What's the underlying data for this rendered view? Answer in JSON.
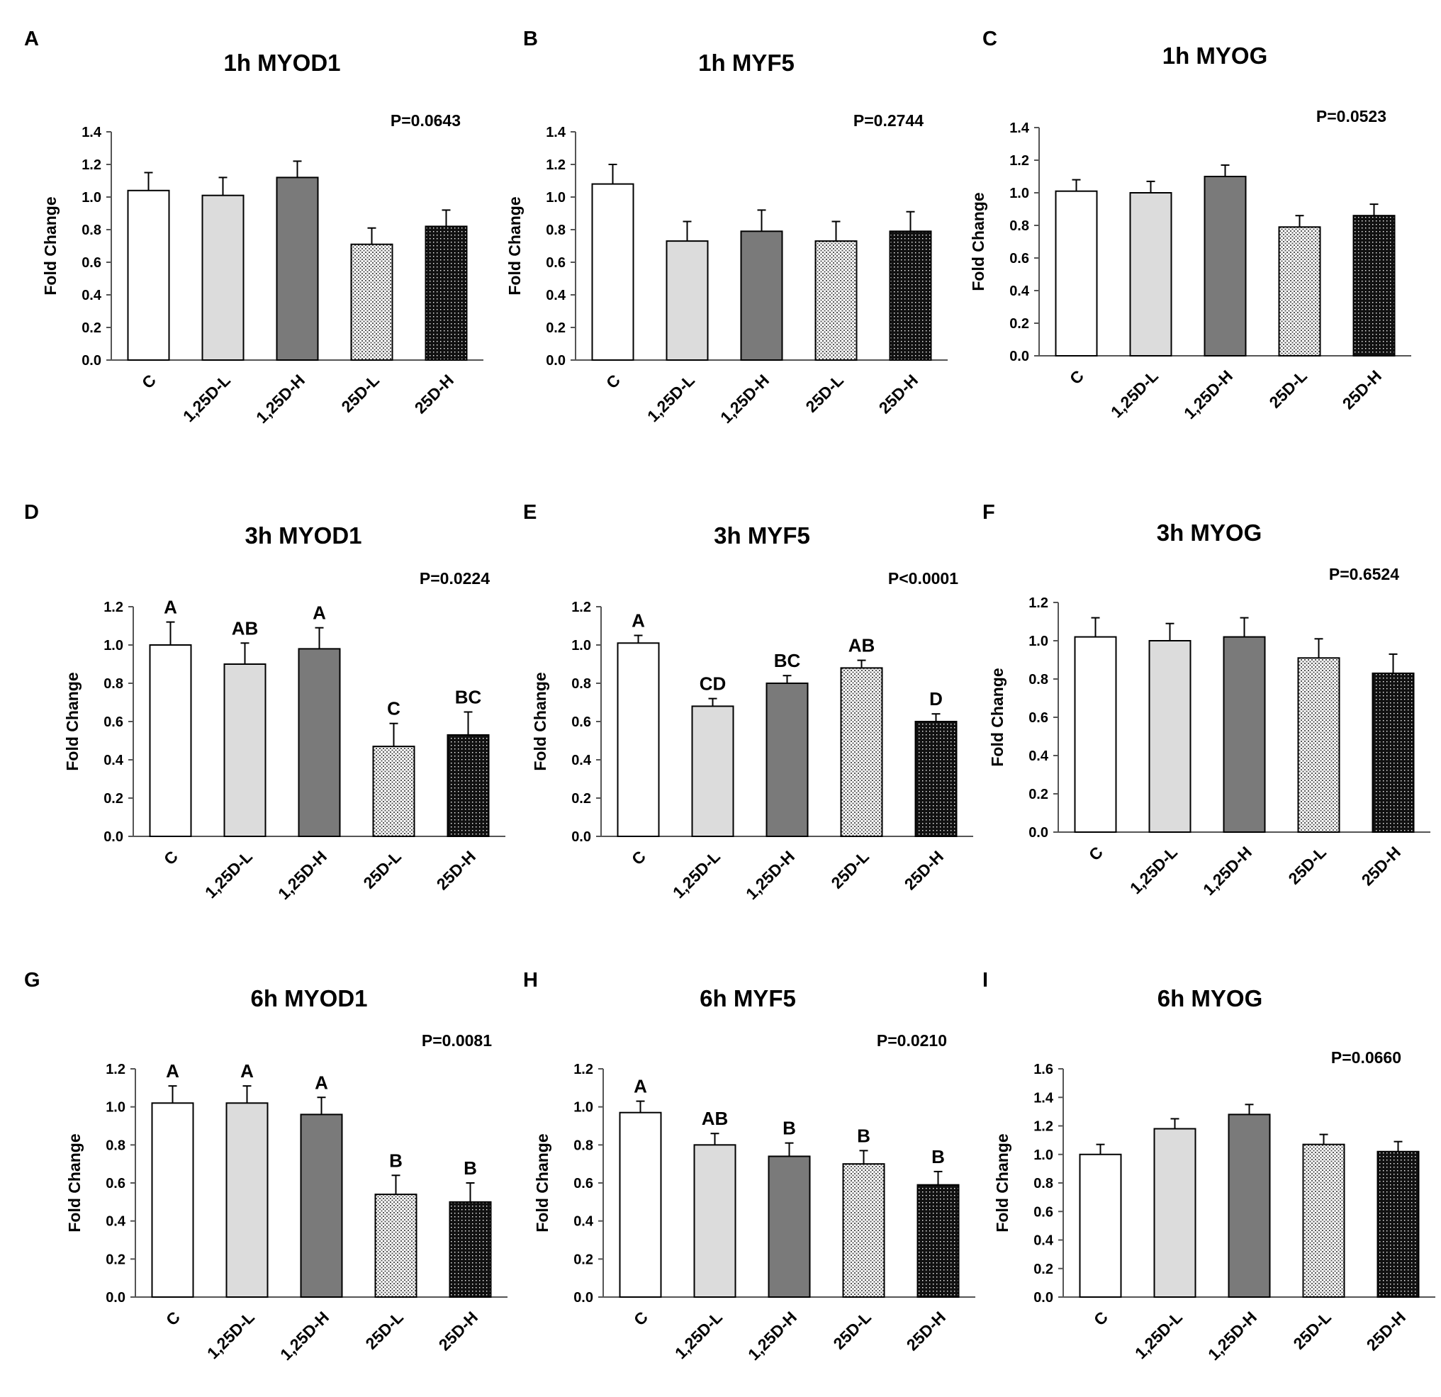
{
  "figure": {
    "categories": [
      "C",
      "1,25D-L",
      "1,25D-H",
      "25D-L",
      "25D-H"
    ],
    "ylabel": "Fold Change",
    "fills": [
      "#ffffff",
      "#dcdcdc",
      "#7a7a7a",
      "pattern-light",
      "pattern-dark"
    ]
  },
  "chart_data": [
    {
      "type": "bar",
      "panel": "A",
      "title": "1h MYOD1",
      "pvalue": "P=0.0643",
      "ylabel": "Fold Change",
      "categories": [
        "C",
        "1,25D-L",
        "1,25D-H",
        "25D-L",
        "25D-H"
      ],
      "ylim": [
        0,
        1.4
      ],
      "step": 0.2,
      "ticks": [
        "0.0",
        "0.2",
        "0.4",
        "0.6",
        "0.8",
        "1.0",
        "1.2",
        "1.4"
      ],
      "values": [
        1.04,
        1.01,
        1.12,
        0.71,
        0.82
      ],
      "errors": [
        0.11,
        0.11,
        0.1,
        0.1,
        0.1
      ],
      "letters": []
    },
    {
      "type": "bar",
      "panel": "B",
      "title": "1h MYF5",
      "pvalue": "P=0.2744",
      "ylabel": "Fold Change",
      "categories": [
        "C",
        "1,25D-L",
        "1,25D-H",
        "25D-L",
        "25D-H"
      ],
      "ylim": [
        0,
        1.4
      ],
      "step": 0.2,
      "ticks": [
        "0.0",
        "0.2",
        "0.4",
        "0.6",
        "0.8",
        "1.0",
        "1.2",
        "1.4"
      ],
      "values": [
        1.08,
        0.73,
        0.79,
        0.73,
        0.79
      ],
      "errors": [
        0.12,
        0.12,
        0.13,
        0.12,
        0.12
      ],
      "letters": []
    },
    {
      "type": "bar",
      "panel": "C",
      "title": "1h MYOG",
      "pvalue": "P=0.0523",
      "ylabel": "Fold Change",
      "categories": [
        "C",
        "1,25D-L",
        "1,25D-H",
        "25D-L",
        "25D-H"
      ],
      "ylim": [
        0,
        1.4
      ],
      "step": 0.2,
      "ticks": [
        "0.0",
        "0.2",
        "0.4",
        "0.6",
        "0.8",
        "1.0",
        "1.2",
        "1.4"
      ],
      "values": [
        1.01,
        1.0,
        1.1,
        0.79,
        0.86
      ],
      "errors": [
        0.07,
        0.07,
        0.07,
        0.07,
        0.07
      ],
      "letters": []
    },
    {
      "type": "bar",
      "panel": "D",
      "title": "3h MYOD1",
      "pvalue": "P=0.0224",
      "ylabel": "Fold Change",
      "categories": [
        "C",
        "1,25D-L",
        "1,25D-H",
        "25D-L",
        "25D-H"
      ],
      "ylim": [
        0,
        1.2
      ],
      "step": 0.2,
      "ticks": [
        "0.0",
        "0.2",
        "0.4",
        "0.6",
        "0.8",
        "1.0",
        "1.2"
      ],
      "values": [
        1.0,
        0.9,
        0.98,
        0.47,
        0.53
      ],
      "errors": [
        0.12,
        0.11,
        0.11,
        0.12,
        0.12
      ],
      "letters": [
        "A",
        "AB",
        "A",
        "C",
        "BC"
      ]
    },
    {
      "type": "bar",
      "panel": "E",
      "title": "3h MYF5",
      "pvalue": "P<0.0001",
      "ylabel": "Fold Change",
      "categories": [
        "C",
        "1,25D-L",
        "1,25D-H",
        "25D-L",
        "25D-H"
      ],
      "ylim": [
        0,
        1.2
      ],
      "step": 0.2,
      "ticks": [
        "0.0",
        "0.2",
        "0.4",
        "0.6",
        "0.8",
        "1.0",
        "1.2"
      ],
      "values": [
        1.01,
        0.68,
        0.8,
        0.88,
        0.6
      ],
      "errors": [
        0.04,
        0.04,
        0.04,
        0.04,
        0.04
      ],
      "letters": [
        "A",
        "CD",
        "BC",
        "AB",
        "D"
      ]
    },
    {
      "type": "bar",
      "panel": "F",
      "title": "3h MYOG",
      "pvalue": "P=0.6524",
      "ylabel": "Fold Change",
      "categories": [
        "C",
        "1,25D-L",
        "1,25D-H",
        "25D-L",
        "25D-H"
      ],
      "ylim": [
        0,
        1.2
      ],
      "step": 0.2,
      "ticks": [
        "0.0",
        "0.2",
        "0.4",
        "0.6",
        "0.8",
        "1.0",
        "1.2"
      ],
      "values": [
        1.02,
        1.0,
        1.02,
        0.91,
        0.83
      ],
      "errors": [
        0.1,
        0.09,
        0.1,
        0.1,
        0.1
      ],
      "letters": []
    },
    {
      "type": "bar",
      "panel": "G",
      "title": "6h MYOD1",
      "pvalue": "P=0.0081",
      "ylabel": "Fold Change",
      "categories": [
        "C",
        "1,25D-L",
        "1,25D-H",
        "25D-L",
        "25D-H"
      ],
      "ylim": [
        0,
        1.2
      ],
      "step": 0.2,
      "ticks": [
        "0.0",
        "0.2",
        "0.4",
        "0.6",
        "0.8",
        "1.0",
        "1.2"
      ],
      "values": [
        1.02,
        1.02,
        0.96,
        0.54,
        0.5
      ],
      "errors": [
        0.09,
        0.09,
        0.09,
        0.1,
        0.1
      ],
      "letters": [
        "A",
        "A",
        "A",
        "B",
        "B"
      ]
    },
    {
      "type": "bar",
      "panel": "H",
      "title": "6h MYF5",
      "pvalue": "P=0.0210",
      "ylabel": "Fold Change",
      "categories": [
        "C",
        "1,25D-L",
        "1,25D-H",
        "25D-L",
        "25D-H"
      ],
      "ylim": [
        0,
        1.2
      ],
      "step": 0.2,
      "ticks": [
        "0.0",
        "0.2",
        "0.4",
        "0.6",
        "0.8",
        "1.0",
        "1.2"
      ],
      "values": [
        0.97,
        0.8,
        0.74,
        0.7,
        0.59
      ],
      "errors": [
        0.06,
        0.06,
        0.07,
        0.07,
        0.07
      ],
      "letters": [
        "A",
        "AB",
        "B",
        "B",
        "B"
      ]
    },
    {
      "type": "bar",
      "panel": "I",
      "title": "6h MYOG",
      "pvalue": "P=0.0660",
      "ylabel": "Fold Change",
      "categories": [
        "C",
        "1,25D-L",
        "1,25D-H",
        "25D-L",
        "25D-H"
      ],
      "ylim": [
        0,
        1.6
      ],
      "step": 0.2,
      "ticks": [
        "0.0",
        "0.2",
        "0.4",
        "0.6",
        "0.8",
        "1.0",
        "1.2",
        "1.4",
        "1.6"
      ],
      "values": [
        1.0,
        1.18,
        1.28,
        1.07,
        1.02
      ],
      "errors": [
        0.07,
        0.07,
        0.07,
        0.07,
        0.07
      ],
      "letters": []
    }
  ]
}
